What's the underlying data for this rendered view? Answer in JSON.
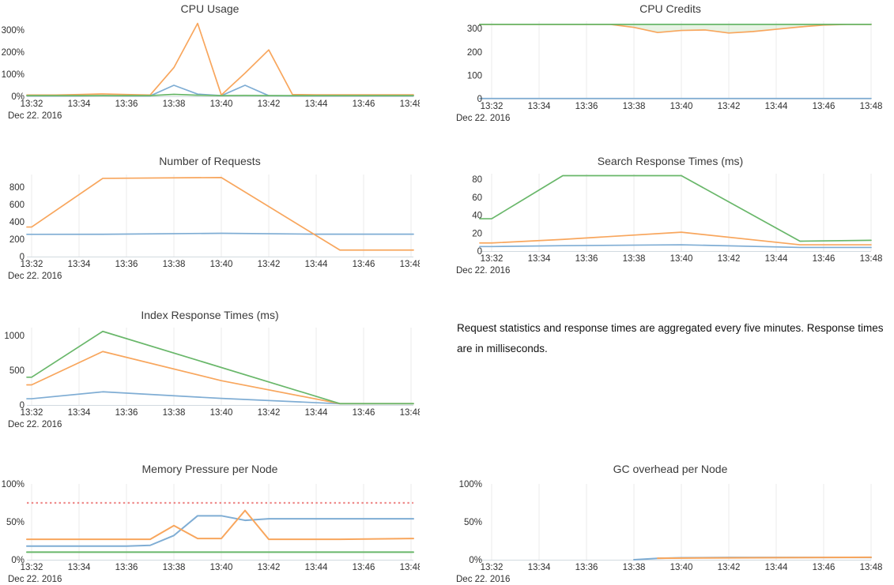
{
  "colors": {
    "blue": "#7fadd4",
    "orange": "#f8a65d",
    "green": "#69b76a",
    "red": "#ee8a8a",
    "grid": "#ebebeb",
    "axis": "#d2dae0",
    "tick_text": "#2f2f2f",
    "title_text": "#3b3b3b"
  },
  "note": {
    "text": "Request statistics and response times are aggregated every five minutes. Response times are in milliseconds."
  },
  "x_axis": {
    "tick_minutes": [
      0,
      2,
      4,
      6,
      8,
      10,
      12,
      14,
      16
    ],
    "tick_labels": [
      "13:32",
      "13:34",
      "13:36",
      "13:38",
      "13:40",
      "13:42",
      "13:44",
      "13:46",
      "13:48"
    ],
    "date_label": "Dec 22. 2016"
  },
  "chart_data": [
    {
      "id": "cpu-usage",
      "type": "line",
      "title": "CPU Usage",
      "grid": false,
      "ylim": [
        0,
        350
      ],
      "xlim": [
        -0.2,
        16.1
      ],
      "y_ticks": [
        {
          "v": 0,
          "label": "0%"
        },
        {
          "v": 100,
          "label": "100%"
        },
        {
          "v": 200,
          "label": "200%"
        },
        {
          "v": 300,
          "label": "300%"
        }
      ],
      "series": [
        {
          "color": "blue",
          "points": [
            [
              0,
              2
            ],
            [
              1,
              2
            ],
            [
              2,
              2
            ],
            [
              3,
              3
            ],
            [
              4,
              2
            ],
            [
              5,
              2
            ],
            [
              6,
              50
            ],
            [
              7,
              10
            ],
            [
              8,
              3
            ],
            [
              9,
              50
            ],
            [
              10,
              3
            ],
            [
              11,
              2
            ],
            [
              12,
              2
            ],
            [
              13,
              2
            ],
            [
              14,
              2
            ],
            [
              15,
              2
            ],
            [
              16,
              2
            ]
          ]
        },
        {
          "color": "orange",
          "points": [
            [
              0,
              6
            ],
            [
              1,
              6
            ],
            [
              2,
              8
            ],
            [
              3,
              11
            ],
            [
              4,
              8
            ],
            [
              5,
              6
            ],
            [
              6,
              130
            ],
            [
              7,
              330
            ],
            [
              8,
              6
            ],
            [
              9,
              105
            ],
            [
              10,
              210
            ],
            [
              11,
              8
            ],
            [
              12,
              7
            ],
            [
              13,
              7
            ],
            [
              14,
              7
            ],
            [
              15,
              7
            ],
            [
              16,
              7
            ]
          ]
        },
        {
          "color": "green",
          "points": [
            [
              0,
              3
            ],
            [
              1,
              3
            ],
            [
              2,
              3
            ],
            [
              3,
              3
            ],
            [
              4,
              3
            ],
            [
              5,
              3
            ],
            [
              6,
              9
            ],
            [
              7,
              5
            ],
            [
              8,
              3
            ],
            [
              9,
              4
            ],
            [
              10,
              3
            ],
            [
              11,
              3
            ],
            [
              12,
              3
            ],
            [
              13,
              3
            ],
            [
              14,
              3
            ],
            [
              15,
              3
            ],
            [
              16,
              3
            ]
          ]
        }
      ]
    },
    {
      "id": "cpu-credits",
      "type": "line",
      "title": "CPU Credits",
      "grid": true,
      "ylim": [
        0,
        331
      ],
      "xlim": [
        -0.5,
        16
      ],
      "y_ticks": [
        {
          "v": 0,
          "label": "0"
        },
        {
          "v": 100,
          "label": "100"
        },
        {
          "v": 200,
          "label": "200"
        },
        {
          "v": 300,
          "label": "300"
        }
      ],
      "fill_between": {
        "upper": 2,
        "lower": 1,
        "color": "rgba(124,186,106,0.18)"
      },
      "series": [
        {
          "color": "blue",
          "points": [
            [
              0,
              1
            ],
            [
              16,
              1
            ]
          ]
        },
        {
          "color": "orange",
          "points": [
            [
              0,
              318
            ],
            [
              5,
              318
            ],
            [
              6,
              305
            ],
            [
              7,
              283
            ],
            [
              8,
              292
            ],
            [
              9,
              294
            ],
            [
              10,
              281
            ],
            [
              11,
              287
            ],
            [
              12,
              297
            ],
            [
              13,
              307
            ],
            [
              14,
              315
            ],
            [
              15,
              318
            ],
            [
              16,
              318
            ]
          ]
        },
        {
          "color": "green",
          "points": [
            [
              0,
              318
            ],
            [
              16,
              318
            ]
          ]
        }
      ]
    },
    {
      "id": "number-of-requests",
      "type": "line",
      "title": "Number of Requests",
      "grid": true,
      "ylim": [
        0,
        945
      ],
      "xlim": [
        -0.2,
        16.1
      ],
      "y_ticks": [
        {
          "v": 0,
          "label": "0"
        },
        {
          "v": 200,
          "label": "200"
        },
        {
          "v": 400,
          "label": "400"
        },
        {
          "v": 600,
          "label": "600"
        },
        {
          "v": 800,
          "label": "800"
        }
      ],
      "series": [
        {
          "color": "blue",
          "points": [
            [
              0,
              256
            ],
            [
              3,
              257
            ],
            [
              8,
              268
            ],
            [
              12,
              258
            ],
            [
              16,
              258
            ]
          ]
        },
        {
          "color": "orange",
          "points": [
            [
              0,
              340
            ],
            [
              3,
              900
            ],
            [
              8,
              910
            ],
            [
              13,
              75
            ],
            [
              16,
              75
            ]
          ]
        }
      ]
    },
    {
      "id": "search-response-times",
      "type": "line",
      "title": "Search Response Times (ms)",
      "grid": true,
      "ylim": [
        0,
        86.2
      ],
      "xlim": [
        -0.5,
        16
      ],
      "y_ticks": [
        {
          "v": 0,
          "label": "0"
        },
        {
          "v": 20,
          "label": "20"
        },
        {
          "v": 40,
          "label": "40"
        },
        {
          "v": 60,
          "label": "60"
        },
        {
          "v": 80,
          "label": "80"
        }
      ],
      "series": [
        {
          "color": "blue",
          "points": [
            [
              0,
              5
            ],
            [
              3,
              6
            ],
            [
              8,
              7
            ],
            [
              13,
              4
            ],
            [
              16,
              4
            ]
          ]
        },
        {
          "color": "orange",
          "points": [
            [
              0,
              9
            ],
            [
              3,
              13
            ],
            [
              8,
              21
            ],
            [
              13,
              7
            ],
            [
              16,
              7
            ]
          ]
        },
        {
          "color": "green",
          "points": [
            [
              0,
              36
            ],
            [
              3,
              84
            ],
            [
              8,
              84
            ],
            [
              13,
              11
            ],
            [
              16,
              12
            ]
          ]
        }
      ]
    },
    {
      "id": "index-response-times",
      "type": "line",
      "title": "Index Response Times (ms)",
      "grid": true,
      "ylim": [
        0,
        1114
      ],
      "xlim": [
        -0.2,
        16.1
      ],
      "y_ticks": [
        {
          "v": 0,
          "label": "0"
        },
        {
          "v": 500,
          "label": "500"
        },
        {
          "v": 1000,
          "label": "1000"
        }
      ],
      "series": [
        {
          "color": "blue",
          "points": [
            [
              0,
              90
            ],
            [
              3,
              190
            ],
            [
              8,
              95
            ],
            [
              13,
              18
            ],
            [
              16,
              18
            ]
          ]
        },
        {
          "color": "orange",
          "points": [
            [
              0,
              290
            ],
            [
              3,
              770
            ],
            [
              8,
              350
            ],
            [
              13,
              20
            ],
            [
              16,
              20
            ]
          ]
        },
        {
          "color": "green",
          "points": [
            [
              0,
              400
            ],
            [
              3,
              1060
            ],
            [
              13,
              20
            ],
            [
              16,
              20
            ]
          ]
        }
      ]
    },
    {
      "id": "memory-pressure",
      "type": "line",
      "title": "Memory Pressure per Node",
      "grid": true,
      "line_width": 2,
      "ylim": [
        0,
        100
      ],
      "xlim": [
        -0.2,
        16.1
      ],
      "threshold": {
        "v": 75,
        "color": "red",
        "style": "dotted"
      },
      "y_ticks": [
        {
          "v": 0,
          "label": "0%"
        },
        {
          "v": 50,
          "label": "50%"
        },
        {
          "v": 100,
          "label": "100%"
        }
      ],
      "series": [
        {
          "color": "blue",
          "points": [
            [
              0,
              18
            ],
            [
              4,
              18
            ],
            [
              5,
              19
            ],
            [
              6,
              32
            ],
            [
              7,
              58
            ],
            [
              8,
              58
            ],
            [
              9,
              52
            ],
            [
              10,
              54
            ],
            [
              16,
              54
            ]
          ]
        },
        {
          "color": "orange",
          "points": [
            [
              0,
              27
            ],
            [
              5,
              27
            ],
            [
              6,
              45
            ],
            [
              7,
              28
            ],
            [
              8,
              28
            ],
            [
              9,
              65
            ],
            [
              10,
              27
            ],
            [
              13,
              27
            ],
            [
              16,
              28
            ]
          ]
        },
        {
          "color": "green",
          "points": [
            [
              0,
              10
            ],
            [
              16,
              10
            ]
          ]
        }
      ]
    },
    {
      "id": "gc-overhead",
      "type": "line",
      "title": "GC overhead per Node",
      "grid": true,
      "line_width": 2,
      "ylim": [
        0,
        100
      ],
      "xlim": [
        -0.5,
        16
      ],
      "y_ticks": [
        {
          "v": 0,
          "label": "0%"
        },
        {
          "v": 50,
          "label": "50%"
        },
        {
          "v": 100,
          "label": "100%"
        }
      ],
      "series": [
        {
          "color": "blue",
          "points": [
            [
              6,
              0
            ],
            [
              7,
              1.8
            ],
            [
              8,
              2.6
            ],
            [
              10,
              3
            ],
            [
              16,
              3
            ]
          ]
        },
        {
          "color": "orange",
          "points": [
            [
              7,
              2
            ],
            [
              9,
              2.3
            ],
            [
              12,
              2.7
            ],
            [
              16,
              3.2
            ]
          ]
        }
      ]
    }
  ]
}
